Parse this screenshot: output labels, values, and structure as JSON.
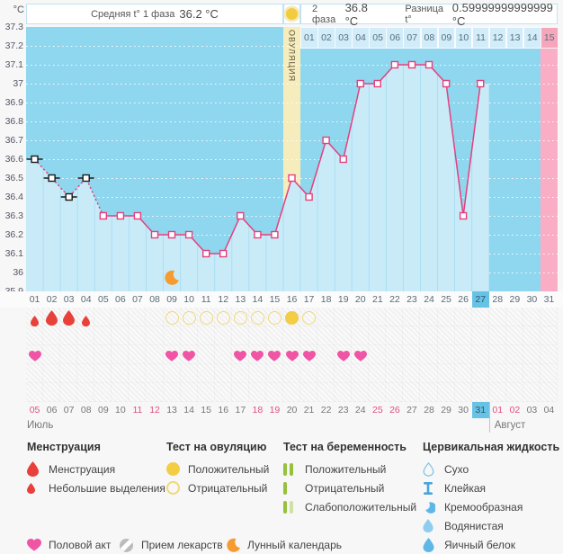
{
  "header": {
    "unit": "°C",
    "phase1_label": "Средняя t° 1 фаза",
    "phase1_value": "36.2 °C",
    "phase2_label": "2 фаза",
    "phase2_value": "36.8 °C",
    "diff_label": "Разница t°",
    "diff_value": "0.59999999999999 °C"
  },
  "chart_data": {
    "type": "line",
    "ylabel": "°C",
    "ylim": [
      35.9,
      37.3
    ],
    "yticks": [
      "37.3",
      "37.2",
      "37.1",
      "37",
      "36.9",
      "36.8",
      "36.7",
      "36.6",
      "36.5",
      "36.4",
      "36.3",
      "36.2",
      "36.1",
      "36",
      "35.9"
    ],
    "day_axis": [
      "01",
      "02",
      "03",
      "04",
      "05",
      "06",
      "07",
      "08",
      "09",
      "10",
      "11",
      "12",
      "13",
      "14",
      "15",
      "16",
      "17",
      "18",
      "19",
      "20",
      "21",
      "22",
      "23",
      "24",
      "25",
      "26",
      "27",
      "28",
      "29",
      "30",
      "31"
    ],
    "temperatures": [
      36.6,
      36.5,
      36.4,
      36.5,
      36.3,
      36.3,
      36.3,
      36.2,
      36.2,
      36.2,
      36.1,
      36.1,
      36.3,
      36.2,
      36.2,
      36.5,
      36.4,
      36.7,
      36.6,
      37.0,
      37.0,
      37.1,
      37.1,
      37.1,
      37.0,
      36.3,
      37.0,
      null,
      null,
      null,
      null
    ],
    "excluded_days": [
      1,
      2,
      3,
      4
    ],
    "ovulation_day": 16,
    "ovulation_label": "ОВУЛЯЦИЯ",
    "predicted_period_day": 31,
    "today_cycle_day": 27,
    "lunar_day": 9,
    "phase2_days": [
      "01",
      "02",
      "03",
      "04",
      "05",
      "06",
      "07",
      "08",
      "09",
      "10",
      "11",
      "12",
      "13",
      "14",
      "15"
    ],
    "menstruation": [
      {
        "day": 1,
        "size": "small"
      },
      {
        "day": 2,
        "size": "large"
      },
      {
        "day": 3,
        "size": "large"
      },
      {
        "day": 4,
        "size": "small"
      }
    ],
    "ovulation_tests": [
      {
        "day": 9,
        "result": "negative"
      },
      {
        "day": 10,
        "result": "negative"
      },
      {
        "day": 11,
        "result": "negative"
      },
      {
        "day": 12,
        "result": "negative"
      },
      {
        "day": 13,
        "result": "negative"
      },
      {
        "day": 14,
        "result": "negative"
      },
      {
        "day": 15,
        "result": "negative"
      },
      {
        "day": 16,
        "result": "positive"
      },
      {
        "day": 17,
        "result": "negative"
      }
    ],
    "intercourse_days": [
      1,
      9,
      10,
      13,
      14,
      15,
      16,
      17,
      19,
      20
    ],
    "calendar": {
      "dates": [
        "05",
        "06",
        "07",
        "08",
        "09",
        "10",
        "11",
        "12",
        "13",
        "14",
        "15",
        "16",
        "17",
        "18",
        "19",
        "20",
        "21",
        "22",
        "23",
        "24",
        "25",
        "26",
        "27",
        "28",
        "29",
        "30",
        "31",
        "01",
        "02",
        "03",
        "04"
      ],
      "weekend_indices": [
        0,
        6,
        7,
        13,
        14,
        20,
        21,
        27,
        28
      ],
      "today_index": 26,
      "august_start_index": 27,
      "july_label": "Июль",
      "august_label": "Август"
    }
  },
  "legend": {
    "groups": [
      {
        "title": "Менструация",
        "items": [
          {
            "icon": "drop-large",
            "label": "Менструация"
          },
          {
            "icon": "drop-small",
            "label": "Небольшие выделения"
          }
        ]
      },
      {
        "title": "Тест на овуляцию",
        "items": [
          {
            "icon": "circle-filled",
            "label": "Положительный"
          },
          {
            "icon": "circle-outline",
            "label": "Отрицательный"
          }
        ]
      },
      {
        "title": "Тест на беременность",
        "items": [
          {
            "icon": "bars-two",
            "label": "Положительный"
          },
          {
            "icon": "bar-one",
            "label": "Отрицательный"
          },
          {
            "icon": "bars-weak",
            "label": "Слабоположительный"
          }
        ]
      },
      {
        "title": "Цервикальная жидкость",
        "items": [
          {
            "icon": "drop-outline",
            "label": "Сухо"
          },
          {
            "icon": "sticky",
            "label": "Клейкая"
          },
          {
            "icon": "creamy",
            "label": "Кремообразная"
          },
          {
            "icon": "watery",
            "label": "Водянистая"
          },
          {
            "icon": "eggwhite",
            "label": "Яичный белок"
          }
        ]
      }
    ],
    "bottom": [
      {
        "icon": "heart",
        "label": "Половой акт"
      },
      {
        "icon": "pill",
        "label": "Прием лекарств"
      },
      {
        "icon": "moon",
        "label": "Лунный календарь"
      }
    ]
  },
  "colors": {
    "chart_bg": "#8ed7ef",
    "area_fill": "#c9ebf8",
    "separator": "#a9def2",
    "gridline": "#ffffff",
    "line": "#e5407e",
    "excluded": "#1a1a1a",
    "ovulation_column": "#f6ecbc",
    "period_column": "#f9aec6",
    "phase2_cell": "#d2ecf9",
    "phase2_cell_period": "#f5a6ba",
    "today_cell": "#67c3e6",
    "weekend_date": "#e0517f",
    "drop_red": "#e8403a",
    "test_yellow": "#f3ce45",
    "test_yellow_outline": "#f1d879",
    "heart_pink": "#f055a5",
    "moon_orange": "#f59b31",
    "preg_green": "#97c03c",
    "preg_pale": "#cfe3a0",
    "cervical_blue": "#5fb7e8",
    "cervical_light": "#8fcdf0",
    "cervical_outline": "#7fc4e8",
    "cervical_dark": "#4aa4d9",
    "pill_gray": "#bcbcbc"
  }
}
